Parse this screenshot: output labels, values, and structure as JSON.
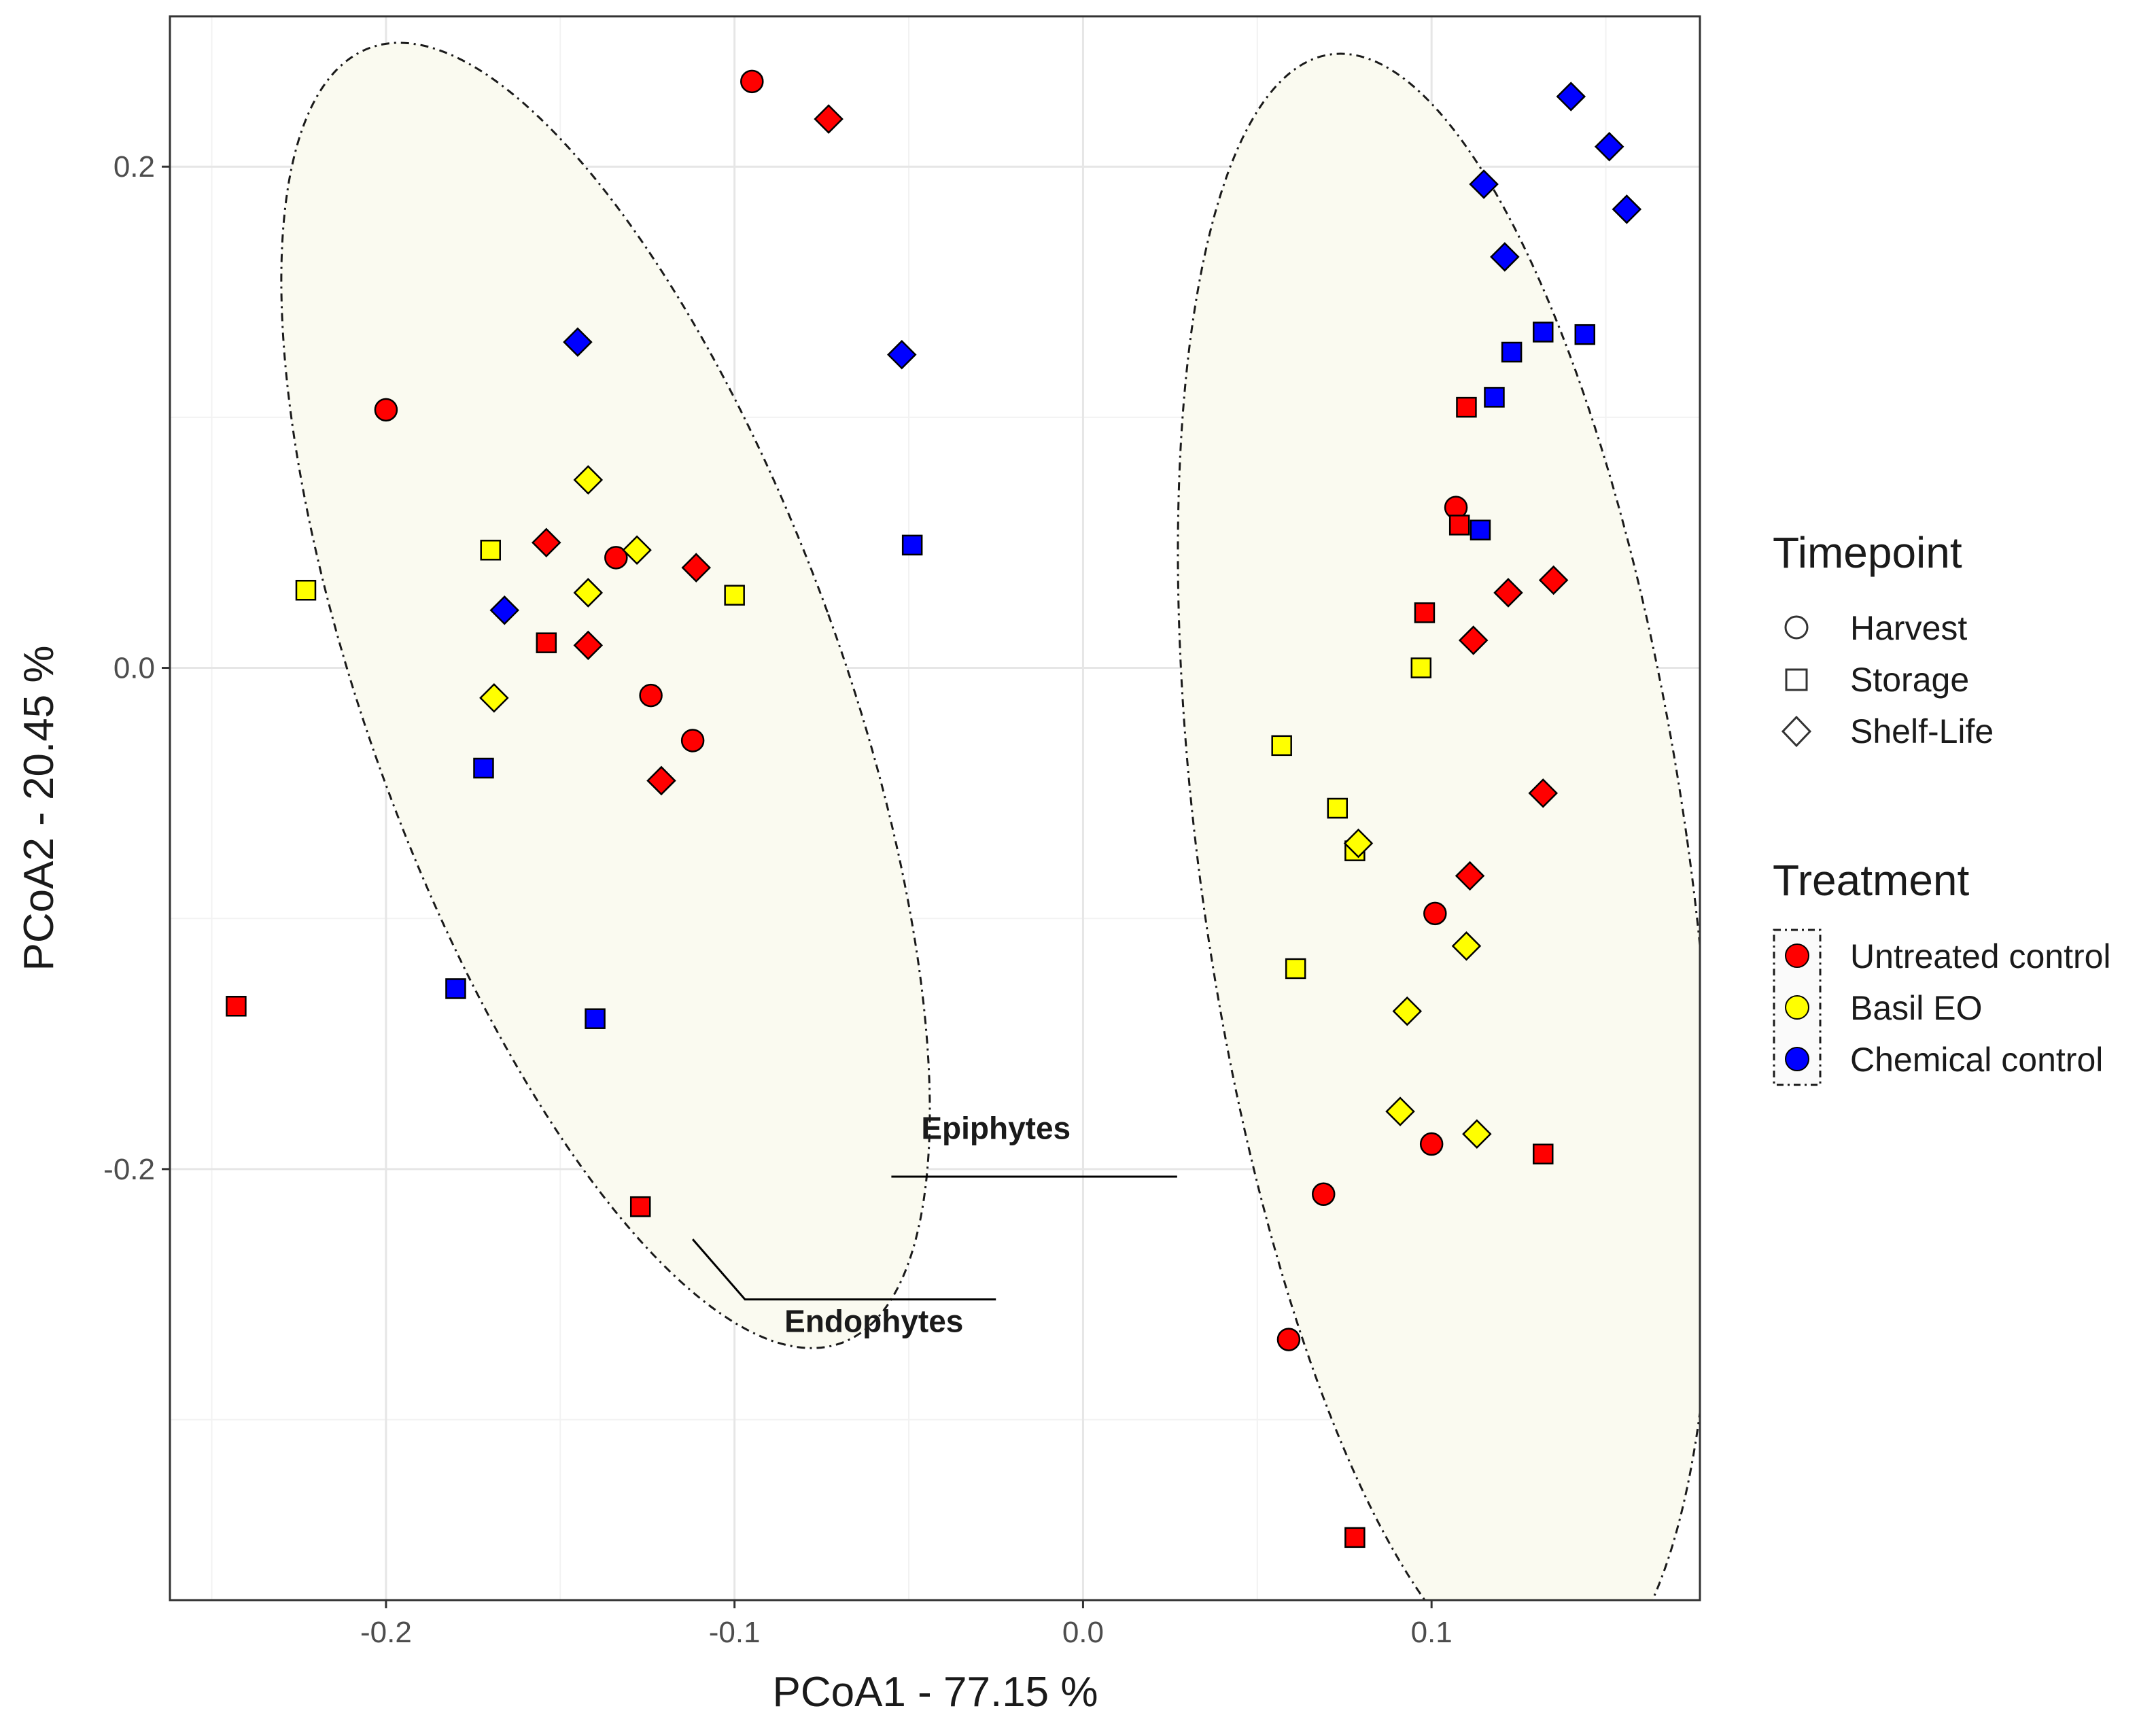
{
  "chart_data": {
    "type": "scatter",
    "title": "",
    "xlabel": "PCoA1 - 77.15 %",
    "ylabel": "PCoA2 - 20.45 %",
    "xlim": [
      -0.262,
      0.177
    ],
    "ylim": [
      -0.372,
      0.26
    ],
    "xticks": [
      -0.2,
      -0.1,
      0.0,
      0.1
    ],
    "xtick_labels": [
      "-0.2",
      "-0.1",
      "0.0",
      "0.1"
    ],
    "yticks": [
      -0.2,
      0.0,
      0.2
    ],
    "ytick_labels": [
      "-0.2",
      "0.0",
      "0.2"
    ],
    "grid": true,
    "colors": {
      "Untreated control": "#ff0000",
      "Basil EO": "#ffff00",
      "Chemical control": "#0000ff"
    },
    "legend": {
      "shape_title": "Timepoint",
      "shape_items": [
        {
          "label": "Harvest",
          "shape": "circle"
        },
        {
          "label": "Storage",
          "shape": "square"
        },
        {
          "label": "Shelf-Life",
          "shape": "diamond"
        }
      ],
      "color_title": "Treatment",
      "color_items": [
        {
          "label": "Untreated control",
          "color": "#ff0000"
        },
        {
          "label": "Basil EO",
          "color": "#ffff00"
        },
        {
          "label": "Chemical control",
          "color": "#0000ff"
        }
      ],
      "position": "right"
    },
    "ellipses": [
      {
        "name": "Endophytes",
        "center": [
          -0.137,
          -0.011
        ],
        "rx_axis": 0.068,
        "ry_axis": 0.275,
        "rotation_deg": -20,
        "fill": "#fafaf0"
      },
      {
        "name": "Epiphytes",
        "center": [
          0.104,
          -0.082
        ],
        "rx_axis": 0.07,
        "ry_axis": 0.33,
        "rotation_deg": -8,
        "fill": "#fafaf0"
      }
    ],
    "annotations": [
      {
        "text": "Endophytes",
        "label_at": [
          -0.06,
          -0.265
        ],
        "line": [
          [
            -0.112,
            -0.228
          ],
          [
            -0.097,
            -0.252
          ],
          [
            -0.025,
            -0.252
          ]
        ]
      },
      {
        "text": "Epiphytes",
        "label_at": [
          -0.025,
          -0.188
        ],
        "line": [
          [
            -0.055,
            -0.203
          ],
          [
            0.027,
            -0.203
          ]
        ]
      }
    ],
    "series": [
      {
        "name": "Untreated control - Harvest",
        "treatment": "Untreated control",
        "timepoint": "Harvest",
        "shape": "circle",
        "x": [
          -0.095,
          -0.2,
          -0.134,
          -0.124,
          -0.112,
          0.107,
          0.101,
          0.1,
          0.069,
          0.059
        ],
        "y": [
          0.234,
          0.103,
          0.044,
          -0.011,
          -0.029,
          0.064,
          -0.098,
          -0.19,
          -0.21,
          -0.268
        ]
      },
      {
        "name": "Untreated control - Storage",
        "treatment": "Untreated control",
        "timepoint": "Storage",
        "shape": "square",
        "x": [
          -0.154,
          -0.243,
          -0.127,
          0.11,
          0.108,
          0.098,
          0.132,
          0.078
        ],
        "y": [
          0.01,
          -0.135,
          -0.215,
          0.104,
          0.057,
          0.022,
          -0.194,
          -0.347
        ]
      },
      {
        "name": "Untreated control - Shelf-Life",
        "treatment": "Untreated control",
        "timepoint": "Shelf-Life",
        "shape": "diamond",
        "x": [
          -0.073,
          -0.154,
          -0.111,
          -0.142,
          -0.121,
          0.122,
          0.135,
          0.112,
          0.132,
          0.111
        ],
        "y": [
          0.219,
          0.05,
          0.04,
          0.009,
          -0.045,
          0.03,
          0.035,
          0.011,
          -0.05,
          -0.083
        ]
      },
      {
        "name": "Basil EO - Storage",
        "treatment": "Basil EO",
        "timepoint": "Storage",
        "shape": "square",
        "x": [
          -0.223,
          -0.17,
          -0.1,
          0.097,
          0.057,
          0.073,
          0.078,
          0.061
        ],
        "y": [
          0.031,
          0.047,
          0.029,
          0.0,
          -0.031,
          -0.056,
          -0.073,
          -0.12
        ]
      },
      {
        "name": "Basil EO - Shelf-Life",
        "treatment": "Basil EO",
        "timepoint": "Shelf-Life",
        "shape": "diamond",
        "x": [
          -0.142,
          -0.128,
          -0.142,
          -0.169,
          0.079,
          0.11,
          0.093,
          0.091,
          0.113
        ],
        "y": [
          0.075,
          0.047,
          0.03,
          -0.012,
          -0.07,
          -0.111,
          -0.137,
          -0.177,
          -0.186
        ]
      },
      {
        "name": "Chemical control - Storage",
        "treatment": "Chemical control",
        "timepoint": "Storage",
        "shape": "square",
        "x": [
          -0.049,
          -0.172,
          -0.18,
          -0.14,
          0.132,
          0.144,
          0.123,
          0.118,
          0.114
        ],
        "y": [
          0.049,
          -0.04,
          -0.128,
          -0.14,
          0.134,
          0.133,
          0.126,
          0.108,
          0.055
        ]
      },
      {
        "name": "Chemical control - Shelf-Life",
        "treatment": "Chemical control",
        "timepoint": "Shelf-Life",
        "shape": "diamond",
        "x": [
          -0.145,
          -0.052,
          -0.166,
          0.14,
          0.151,
          0.156,
          0.115,
          0.121
        ],
        "y": [
          0.13,
          0.125,
          0.023,
          0.228,
          0.208,
          0.183,
          0.193,
          0.164
        ]
      }
    ]
  }
}
